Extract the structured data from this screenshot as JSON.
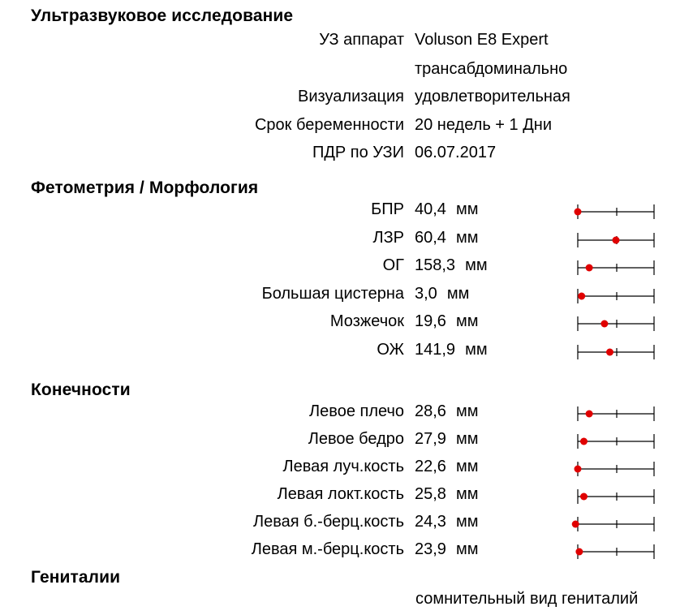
{
  "ultrasound": {
    "title": "Ультразвуковое исследование",
    "rows": [
      {
        "label": "УЗ аппарат",
        "value": "Voluson E8 Expert"
      },
      {
        "label": "",
        "value": "трансабдоминально"
      },
      {
        "label": "Визуализация",
        "value": "удовлетворительная"
      },
      {
        "label": "Срок беременности",
        "value": "20 недель + 1 Дни"
      },
      {
        "label": "ПДР по УЗИ",
        "value": "06.07.2017"
      }
    ]
  },
  "fetometry": {
    "title": "Фетометрия / Морфология",
    "rows": [
      {
        "label": "БПР",
        "value": "40,4",
        "unit": "мм",
        "position": 0.0
      },
      {
        "label": "ЛЗР",
        "value": "60,4",
        "unit": "мм",
        "position": 0.5
      },
      {
        "label": "ОГ",
        "value": "158,3",
        "unit": "мм",
        "position": 0.15
      },
      {
        "label": "Большая цистерна",
        "value": "3,0",
        "unit": "мм",
        "position": 0.05
      },
      {
        "label": "Мозжечок",
        "value": "19,6",
        "unit": "мм",
        "position": 0.35
      },
      {
        "label": "ОЖ",
        "value": "141,9",
        "unit": "мм",
        "position": 0.42
      }
    ]
  },
  "limbs": {
    "title": "Конечности",
    "rows": [
      {
        "label": "Левое плечо",
        "value": "28,6",
        "unit": "мм",
        "position": 0.15
      },
      {
        "label": "Левое бедро",
        "value": "27,9",
        "unit": "мм",
        "position": 0.08
      },
      {
        "label": "Левая луч.кость",
        "value": "22,6",
        "unit": "мм",
        "position": 0.0
      },
      {
        "label": "Левая локт.кость",
        "value": "25,8",
        "unit": "мм",
        "position": 0.08
      },
      {
        "label": "Левая б.-берц.кость",
        "value": "24,3",
        "unit": "мм",
        "position": -0.03
      },
      {
        "label": "Левая м.-берц.кость",
        "value": "23,9",
        "unit": "мм",
        "position": 0.02
      }
    ]
  },
  "genitals": {
    "title": "Гениталии",
    "value": "сомнительный вид гениталий"
  },
  "colors": {
    "dot": "#e00000",
    "line": "#000000"
  }
}
